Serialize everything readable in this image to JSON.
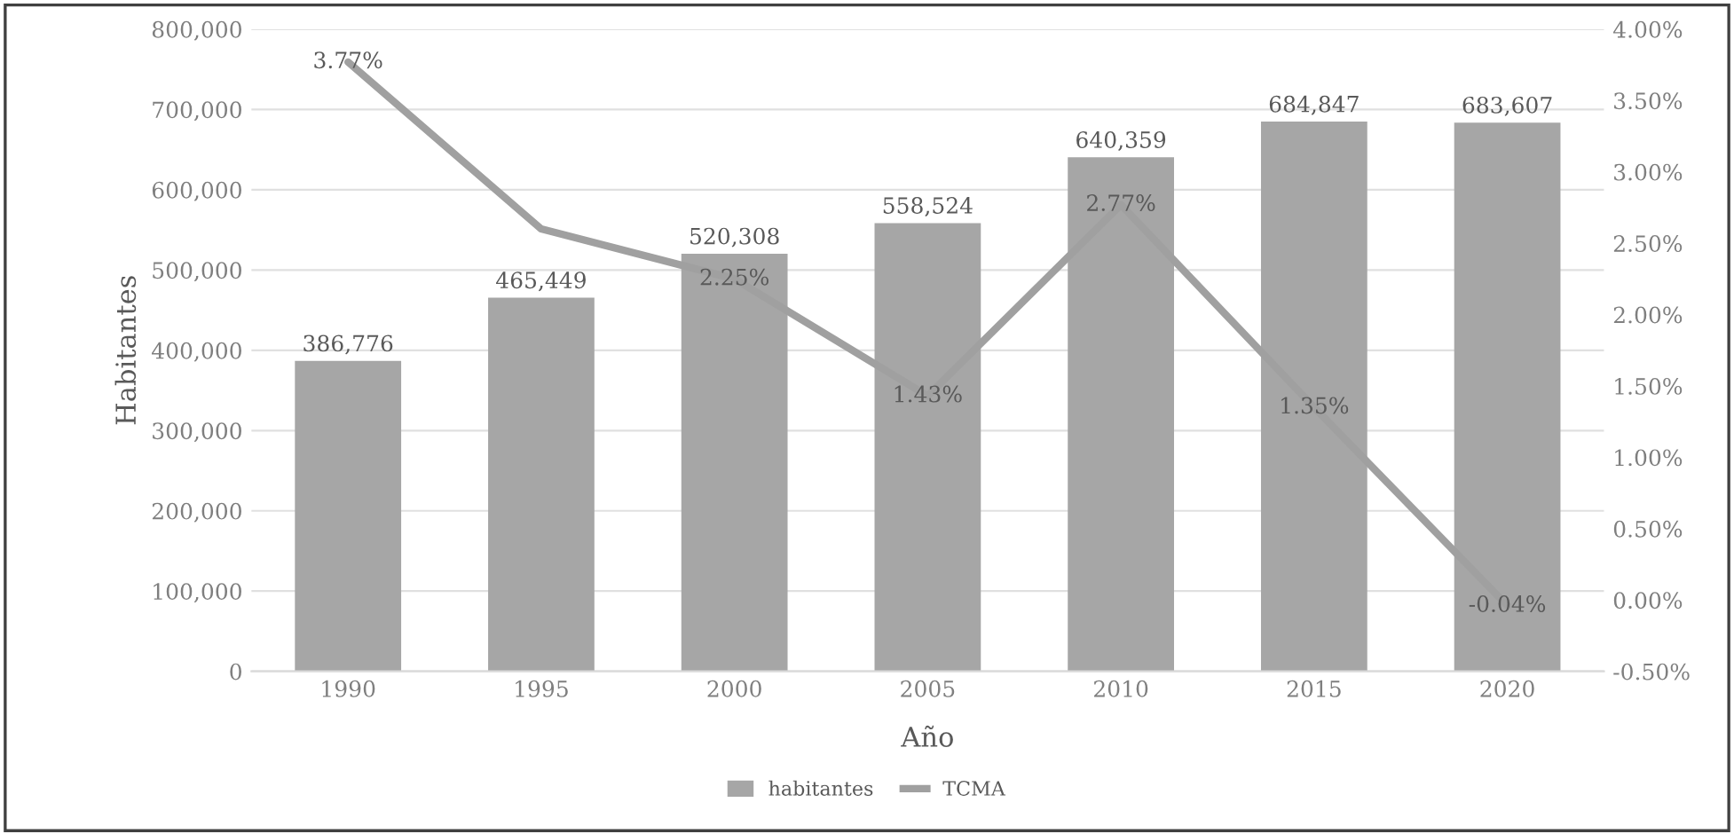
{
  "chart_data": {
    "type": "bar",
    "categories": [
      "1990",
      "1995",
      "2000",
      "2005",
      "2010",
      "2015",
      "2020"
    ],
    "xlabel": "Año",
    "ylabel": "Habitantes",
    "series": [
      {
        "name": "habitantes",
        "color": "#a6a6a6",
        "values": [
          386776,
          465449,
          520308,
          558524,
          640359,
          684847,
          683607
        ],
        "value_labels": [
          "386,776",
          "465,449",
          "520,308",
          "558,524",
          "640,359",
          "684,847",
          "683,607"
        ]
      },
      {
        "name": "TCMA",
        "type": "line",
        "axis": "y2",
        "color": "#a0a0a0",
        "values": [
          3.77,
          2.6,
          2.25,
          1.43,
          2.77,
          1.35,
          -0.04
        ],
        "value_labels": [
          "3.77%",
          null,
          "2.25%",
          "1.43%",
          "2.77%",
          "1.35%",
          "-0.04%"
        ]
      }
    ],
    "ylim": [
      0,
      800000
    ],
    "yticks": [
      0,
      {
        "value": 100000,
        "label": "100,000"
      },
      {
        "value": 200000,
        "label": "200,000"
      },
      {
        "value": 300000,
        "label": "300,000"
      },
      {
        "value": 400000,
        "label": "400,000"
      },
      {
        "value": 500000,
        "label": "500,000"
      },
      {
        "value": 600000,
        "label": "600,000"
      },
      {
        "value": 700000,
        "label": "700,000"
      },
      {
        "value": 800000,
        "label": "800,000"
      }
    ],
    "y2lim": [
      -0.5,
      4.0
    ],
    "y2ticks": [
      {
        "value": -0.5,
        "label": "-0.50%"
      },
      {
        "value": 0.0,
        "label": "0.00%"
      },
      {
        "value": 0.5,
        "label": "0.50%"
      },
      {
        "value": 1.0,
        "label": "1.00%"
      },
      {
        "value": 1.5,
        "label": "1.50%"
      },
      {
        "value": 2.0,
        "label": "2.00%"
      },
      {
        "value": 2.5,
        "label": "2.50%"
      },
      {
        "value": 3.0,
        "label": "3.00%"
      },
      {
        "value": 3.5,
        "label": "3.50%"
      },
      {
        "value": 4.0,
        "label": "4.00%"
      }
    ],
    "grid": "y",
    "legend": "bottom"
  }
}
